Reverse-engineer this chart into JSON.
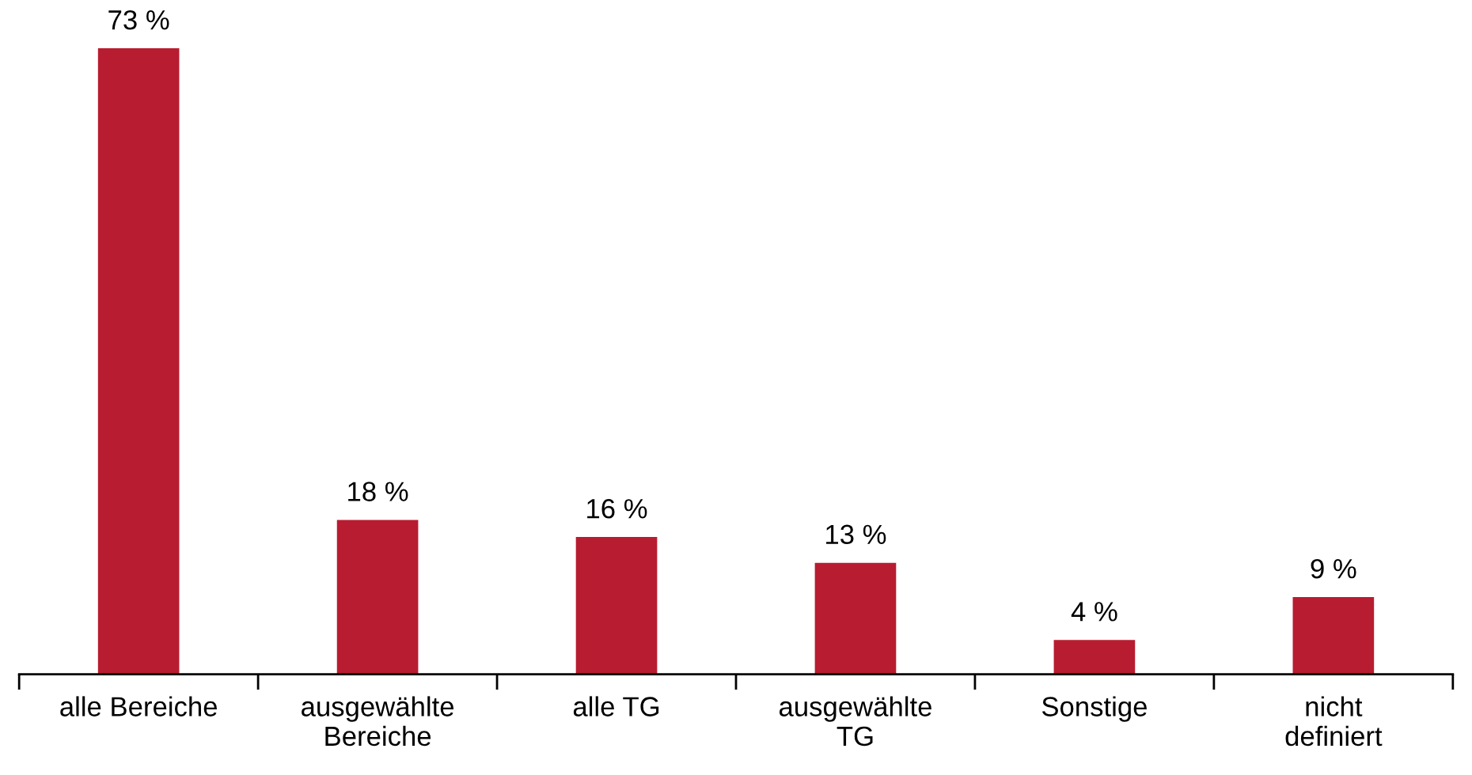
{
  "chart_data": {
    "type": "bar",
    "categories": [
      "alle Bereiche",
      "ausgewählte\nBereiche",
      "alle TG",
      "ausgewählte\nTG",
      "Sonstige",
      "nicht\ndefiniert"
    ],
    "values": [
      73,
      18,
      16,
      13,
      4,
      9
    ],
    "value_labels": [
      "73 %",
      "18 %",
      "16 %",
      "13 %",
      "4 %",
      "9 %"
    ],
    "color": "#b81c30",
    "grid": false,
    "legend": false
  }
}
